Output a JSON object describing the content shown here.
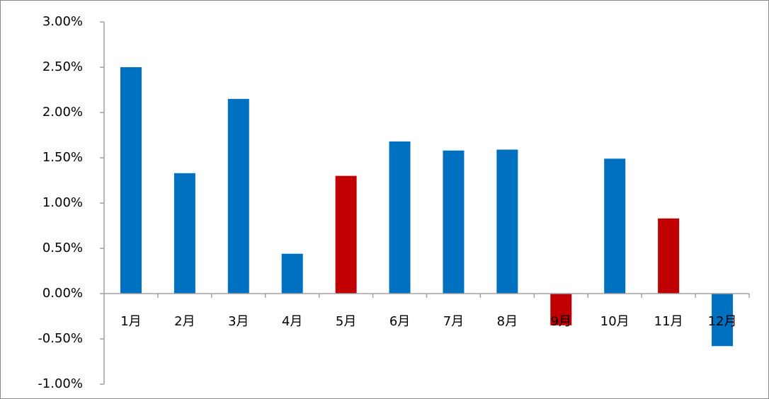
{
  "chart_data": {
    "type": "bar",
    "categories": [
      "1月",
      "2月",
      "3月",
      "4月",
      "5月",
      "6月",
      "7月",
      "8月",
      "9月",
      "10月",
      "11月",
      "12月"
    ],
    "values": [
      2.5,
      1.33,
      2.15,
      0.44,
      1.3,
      1.68,
      1.58,
      1.59,
      -0.35,
      1.49,
      0.83,
      -0.58
    ],
    "colors": [
      "#0070c0",
      "#0070c0",
      "#0070c0",
      "#0070c0",
      "#c00000",
      "#0070c0",
      "#0070c0",
      "#0070c0",
      "#c00000",
      "#0070c0",
      "#c00000",
      "#0070c0"
    ],
    "ylim": [
      -1,
      3
    ],
    "yticks": [
      {
        "value": -1,
        "label": "-1.00%"
      },
      {
        "value": -0.5,
        "label": "-0.50%"
      },
      {
        "value": 0,
        "label": "0.00%"
      },
      {
        "value": 0.5,
        "label": "0.50%"
      },
      {
        "value": 1,
        "label": "1.00%"
      },
      {
        "value": 1.5,
        "label": "1.50%"
      },
      {
        "value": 2,
        "label": "2.00%"
      },
      {
        "value": 2.5,
        "label": "2.50%"
      },
      {
        "value": 3,
        "label": "3.00%"
      }
    ],
    "grid": false
  }
}
